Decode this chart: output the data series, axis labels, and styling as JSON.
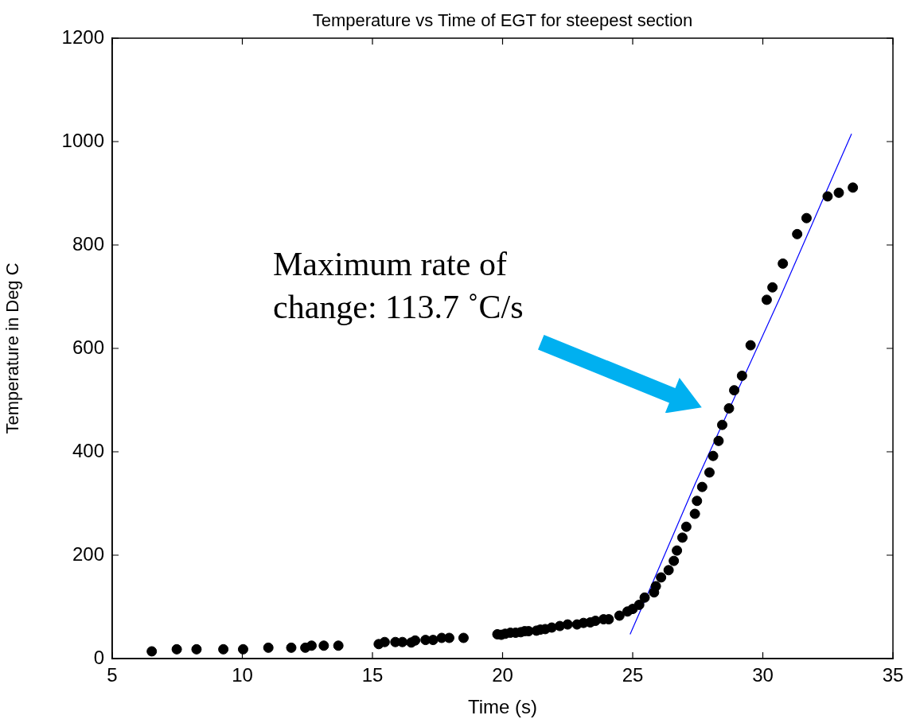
{
  "chart_data": {
    "type": "scatter",
    "title": "Temperature vs Time of EGT for steepest section",
    "xlabel": "Time (s)",
    "ylabel": "Temperature in Deg C",
    "xlim": [
      5,
      35
    ],
    "xticks": [
      5,
      10,
      15,
      20,
      25,
      30,
      35
    ],
    "ylim": [
      0,
      1200
    ],
    "yticks": [
      0,
      200,
      400,
      600,
      800,
      1000,
      1200
    ],
    "grid": false,
    "legend": false,
    "marker": "circle",
    "annotations": [
      "Maximum rate of change: 113.7 ˚C/s"
    ],
    "series": [
      {
        "color": "#000000",
        "x": [
          6.52,
          7.48,
          8.24,
          9.27,
          10.03,
          11.0,
          11.88,
          12.42,
          12.66,
          13.13,
          13.69,
          15.24,
          15.47,
          15.88,
          16.15,
          16.49,
          16.64,
          17.04,
          17.33,
          17.66,
          17.95,
          18.5,
          19.8,
          19.95,
          20.1,
          20.3,
          20.5,
          20.7,
          20.85,
          21.0,
          21.3,
          21.45,
          21.64,
          21.89,
          22.2,
          22.5,
          22.86,
          23.11,
          23.37,
          23.57,
          23.88,
          24.08,
          24.49,
          24.8,
          25.0,
          25.25,
          25.46,
          25.82,
          25.89,
          26.09,
          26.38,
          26.58,
          26.7,
          26.91,
          27.06,
          27.39,
          27.47,
          27.67,
          27.95,
          28.09,
          28.3,
          28.44,
          28.7,
          28.9,
          29.2,
          29.53,
          30.15,
          30.37,
          30.77,
          31.32,
          31.68,
          32.49,
          32.92,
          33.46
        ],
        "values": [
          14,
          18,
          18,
          18,
          18,
          21,
          21,
          21,
          25,
          25,
          25,
          28,
          32,
          32,
          32,
          31,
          35,
          36,
          36,
          40,
          40,
          40,
          47,
          46,
          48,
          50,
          50,
          51,
          53,
          53,
          54,
          56,
          57,
          60,
          63,
          66,
          66,
          69,
          70,
          73,
          76,
          76,
          83,
          91,
          96,
          104,
          118,
          128,
          140,
          157,
          171,
          189,
          209,
          234,
          255,
          280,
          305,
          332,
          360,
          392,
          421,
          452,
          484,
          519,
          547,
          606,
          694,
          718,
          764,
          821,
          852,
          894,
          901,
          911
        ]
      },
      {
        "type": "line",
        "color": "#0000ff",
        "marker": "none",
        "line_style": "solid",
        "x": [
          24.9,
          25.76,
          27.4,
          30.66,
          32.8,
          33.41
        ],
        "values": [
          47,
          146,
          338,
          698,
          945,
          1015
        ]
      }
    ]
  }
}
